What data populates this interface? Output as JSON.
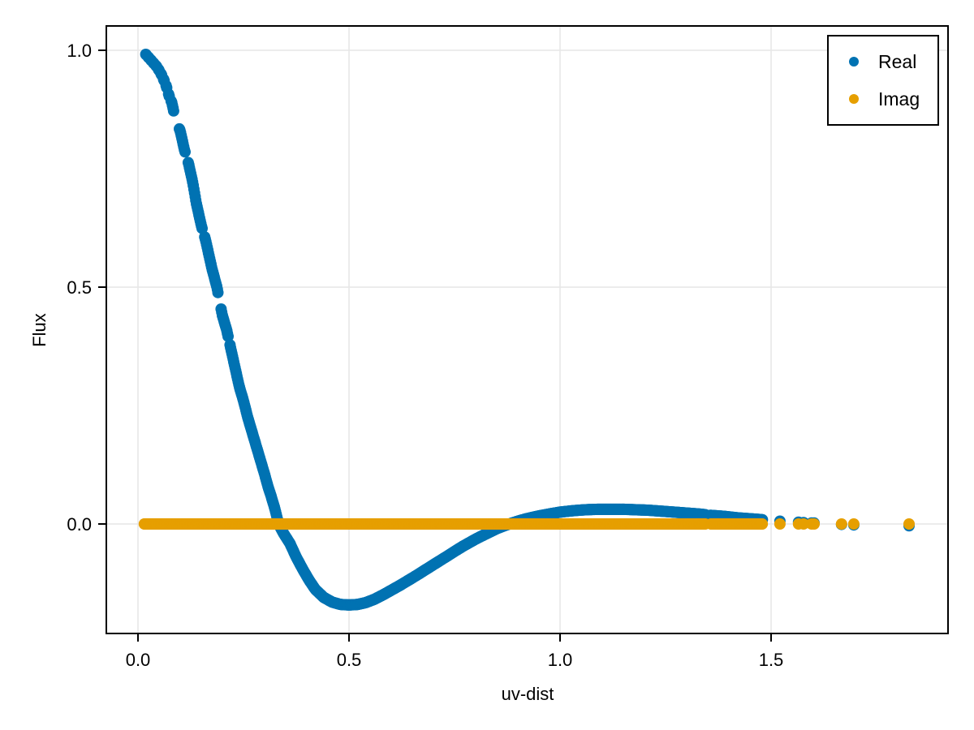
{
  "chart_data": {
    "type": "scatter",
    "title": "",
    "xlabel": "uv-dist",
    "ylabel": "Flux",
    "xlim": [
      -0.075,
      1.92
    ],
    "ylim": [
      -0.23,
      1.05
    ],
    "grid": true,
    "legend_position": "top-right",
    "x_ticks": [
      0.0,
      0.5,
      1.0,
      1.5
    ],
    "x_tick_labels": [
      "0.0",
      "0.5",
      "1.0",
      "1.5"
    ],
    "y_ticks": [
      0.0,
      0.5,
      1.0
    ],
    "y_tick_labels": [
      "0.0",
      "0.5",
      "1.0"
    ],
    "series": [
      {
        "name": "Real",
        "color": "#0072B2",
        "x": [
          0.017,
          0.035,
          0.045,
          0.055,
          0.06,
          0.065,
          0.075,
          0.08,
          0.09,
          0.1,
          0.105,
          0.11,
          0.12,
          0.125,
          0.13,
          0.138,
          0.145,
          0.15,
          0.16,
          0.17,
          0.175,
          0.187,
          0.2,
          0.21,
          0.22,
          0.23,
          0.24,
          0.25,
          0.26,
          0.27,
          0.28,
          0.29,
          0.3,
          0.308,
          0.315,
          0.325,
          0.333,
          0.345,
          0.36,
          0.375,
          0.39,
          0.405,
          0.42,
          0.44,
          0.46,
          0.48,
          0.5,
          0.52,
          0.54,
          0.56,
          0.58,
          0.6,
          0.62,
          0.65,
          0.67,
          0.7,
          0.72,
          0.75,
          0.77,
          0.8,
          0.82,
          0.85,
          0.87,
          0.9,
          0.92,
          0.95,
          0.98,
          1.0,
          1.03,
          1.06,
          1.09,
          1.12,
          1.15,
          1.18,
          1.21,
          1.24,
          1.27,
          1.3,
          1.33,
          1.36,
          1.39,
          1.42,
          1.45,
          1.48,
          1.521,
          1.565,
          1.577,
          1.596,
          1.602,
          1.667,
          1.696,
          1.827
        ],
        "y": [
          0.993,
          0.975,
          0.965,
          0.95,
          0.94,
          0.93,
          0.9,
          0.89,
          0.85,
          0.83,
          0.81,
          0.79,
          0.76,
          0.74,
          0.72,
          0.678,
          0.65,
          0.63,
          0.6,
          0.56,
          0.54,
          0.5,
          0.44,
          0.41,
          0.37,
          0.33,
          0.29,
          0.26,
          0.225,
          0.195,
          0.165,
          0.135,
          0.105,
          0.079,
          0.06,
          0.03,
          0.0,
          -0.02,
          -0.041,
          -0.07,
          -0.095,
          -0.118,
          -0.138,
          -0.155,
          -0.165,
          -0.17,
          -0.171,
          -0.17,
          -0.166,
          -0.159,
          -0.15,
          -0.14,
          -0.13,
          -0.114,
          -0.103,
          -0.086,
          -0.075,
          -0.058,
          -0.047,
          -0.032,
          -0.023,
          -0.01,
          -0.003,
          0.006,
          0.011,
          0.017,
          0.022,
          0.025,
          0.028,
          0.03,
          0.031,
          0.031,
          0.031,
          0.03,
          0.029,
          0.027,
          0.025,
          0.023,
          0.021,
          0.018,
          0.016,
          0.013,
          0.011,
          0.009,
          0.006,
          0.004,
          0.003,
          0.002,
          0.002,
          -0.001,
          -0.002,
          -0.004
        ]
      },
      {
        "name": "Imag",
        "color": "#E69F00",
        "x_range_dense": [
          0.015,
          1.48
        ],
        "sparse_x": [
          1.521,
          1.565,
          1.577,
          1.596,
          1.602,
          1.667,
          1.696,
          1.827
        ],
        "y_value": 0.0
      }
    ]
  },
  "legend": {
    "items": [
      {
        "label": "Real",
        "color": "#0072B2"
      },
      {
        "label": "Imag",
        "color": "#E69F00"
      }
    ]
  },
  "axes": {
    "xlabel": "uv-dist",
    "ylabel": "Flux",
    "x_tick_labels": [
      "0.0",
      "0.5",
      "1.0",
      "1.5"
    ],
    "y_tick_labels": [
      "0.0",
      "0.5",
      "1.0"
    ]
  }
}
